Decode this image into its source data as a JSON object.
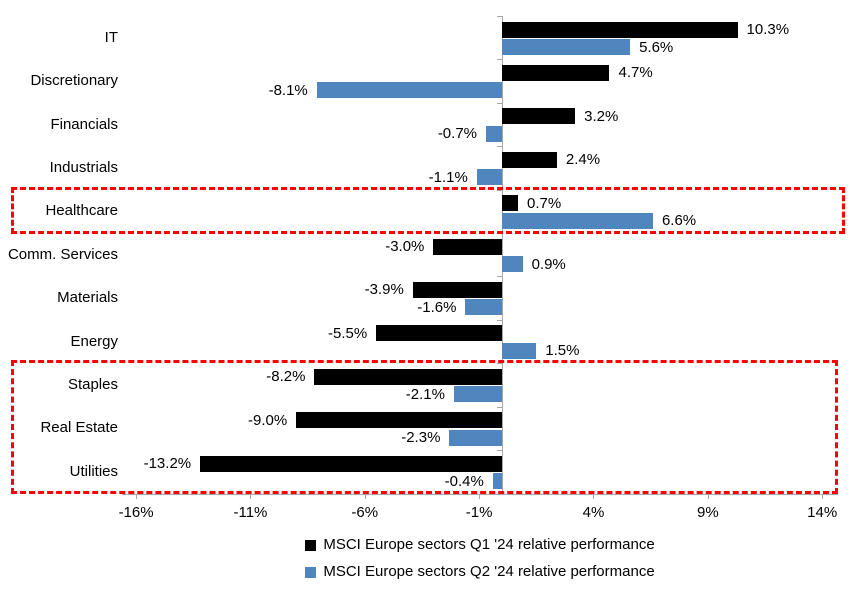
{
  "chart_data": {
    "type": "bar",
    "orientation": "horizontal",
    "title": "",
    "categories": [
      "IT",
      "Discretionary",
      "Financials",
      "Industrials",
      "Healthcare",
      "Comm. Services",
      "Materials",
      "Energy",
      "Staples",
      "Real Estate",
      "Utilities"
    ],
    "series": [
      {
        "name": "MSCI Europe sectors Q1 '24 relative performance",
        "color": "#000000",
        "values": [
          10.3,
          4.7,
          3.2,
          2.4,
          0.7,
          -3.0,
          -3.9,
          -5.5,
          -8.2,
          -9.0,
          -13.2
        ]
      },
      {
        "name": "MSCI Europe sectors Q2 '24 relative performance",
        "color": "#4f86be",
        "values": [
          5.6,
          -8.1,
          -0.7,
          -1.1,
          6.6,
          0.9,
          -1.6,
          1.5,
          -2.1,
          -2.3,
          -0.4
        ]
      }
    ],
    "value_label_format": "percent-one-decimal",
    "x_axis": {
      "tick_labels": [
        "-16%",
        "-11%",
        "-6%",
        "-1%",
        "4%",
        "9%",
        "14%"
      ],
      "tick_values": [
        -16,
        -11,
        -6,
        -1,
        4,
        9,
        14
      ],
      "range": [
        -16.6,
        14.7
      ]
    },
    "gridlines": false,
    "legend_position": "bottom",
    "axis_color": "#a6a6a6",
    "highlight_color": "#ff0000",
    "highlights": [
      {
        "name": "healthcare-box",
        "rows": [
          "Healthcare"
        ],
        "style": "dashed"
      },
      {
        "name": "defensives-box",
        "rows": [
          "Staples",
          "Real Estate",
          "Utilities"
        ],
        "style": "dashed"
      }
    ]
  }
}
